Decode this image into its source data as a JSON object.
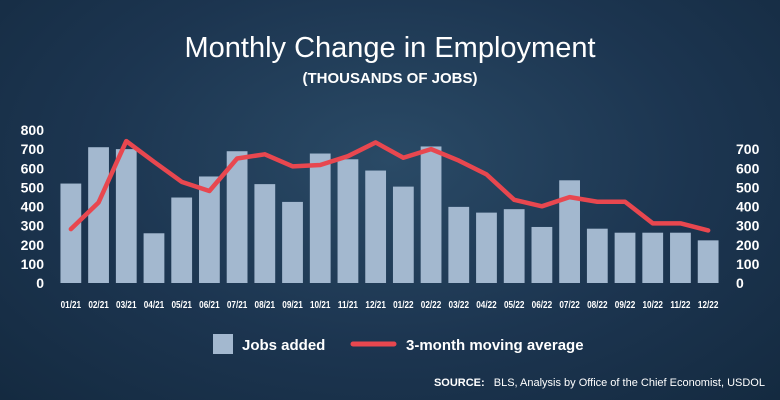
{
  "colors": {
    "bar": "#a3b8cf",
    "line": "#e8474f",
    "text": "#ffffff"
  },
  "source": {
    "label": "SOURCE:",
    "text": "BLS, Analysis by Office of the Chief Economist, USDOL"
  },
  "chart_data": {
    "type": "bar",
    "title": "Monthly Change in Employment",
    "subtitle": "(THOUSANDS OF JOBS)",
    "categories": [
      "01/21",
      "02/21",
      "03/21",
      "04/21",
      "05/21",
      "06/21",
      "07/21",
      "08/21",
      "09/21",
      "10/21",
      "11/21",
      "12/21",
      "01/22",
      "02/22",
      "03/22",
      "04/22",
      "05/22",
      "06/22",
      "07/22",
      "08/22",
      "09/22",
      "10/22",
      "11/22",
      "12/22"
    ],
    "series": [
      {
        "name": "Jobs added",
        "type": "bar",
        "axis": "left",
        "values": [
          520,
          710,
          700,
          260,
          447,
          557,
          689,
          517,
          424,
          677,
          647,
          588,
          504,
          714,
          398,
          368,
          386,
          293,
          537,
          284,
          263,
          263,
          263,
          223
        ]
      },
      {
        "name": "3-month moving average",
        "type": "line",
        "axis": "left",
        "values": [
          282,
          421,
          742,
          634,
          529,
          481,
          651,
          673,
          610,
          617,
          663,
          735,
          655,
          700,
          640,
          568,
          435,
          401,
          449,
          425,
          425,
          312,
          312,
          275
        ]
      }
    ],
    "y_left": {
      "min": 0,
      "max": 800,
      "ticks": [
        0,
        100,
        200,
        300,
        400,
        500,
        600,
        700,
        800
      ]
    },
    "y_right": {
      "min": 0,
      "max": 700,
      "ticks": [
        0,
        100,
        200,
        300,
        400,
        500,
        600,
        700
      ]
    },
    "grid": false,
    "legend_position": "bottom"
  }
}
